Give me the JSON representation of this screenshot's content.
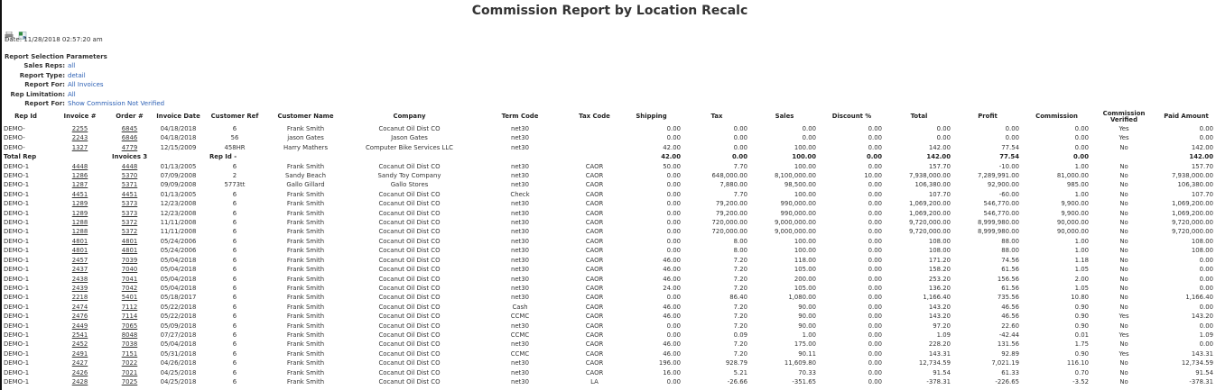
{
  "title": "Commission Report by Location Recalc",
  "toolbar": {
    "icons": [
      "print-icon",
      "excel-export-icon"
    ]
  },
  "date": "Date: 11/28/2018 02:57:20 am",
  "params": {
    "heading": "Report Selection Parameters",
    "items": [
      {
        "label": "Sales Reps:",
        "value": "all"
      },
      {
        "label": "Report Type:",
        "value": "detail"
      },
      {
        "label": "Report For:",
        "value": "All Invoices"
      },
      {
        "label": "Rep Limitation:",
        "value": "All"
      },
      {
        "label": "Report For:",
        "value": "Show Commission Not Verified"
      }
    ]
  },
  "colors": {
    "param_value": "#2b5fb4",
    "total_label": "#1a8a1a"
  },
  "table": {
    "headers": [
      "Rep Id",
      "Invoice #",
      "Order #",
      "Invoice Date",
      "Customer Ref",
      "Customer Name",
      "Company",
      "Term Code",
      "Tax Code",
      "Shipping",
      "Tax",
      "Sales",
      "Discount %",
      "Total",
      "Profit",
      "Commission",
      "Commission Verified",
      "Paid Amount"
    ],
    "rows_before_total": [
      [
        "DEMO-",
        "2255",
        "6845",
        "04/18/2018",
        "6",
        "Frank Smith",
        "Cocanut Oil Dist CO",
        "net30",
        "",
        "0.00",
        "0.00",
        "0.00",
        "0.00",
        "0.00",
        "0.00",
        "0.00",
        "Yes",
        "0.00"
      ],
      [
        "DEMO-",
        "2243",
        "6846",
        "04/18/2018",
        "56",
        "jason Gates",
        "Jason Gates",
        "net30",
        "",
        "0.00",
        "0.00",
        "0.00",
        "0.00",
        "0.00",
        "0.00",
        "0.00",
        "Yes",
        "0.00"
      ],
      [
        "DEMO-",
        "1327",
        "4779",
        "12/15/2009",
        "458HR",
        "Harry Mathers",
        "Computer Bike Services LLC",
        "net30",
        "",
        "42.00",
        "0.00",
        "100.00",
        "0.00",
        "142.00",
        "77.54",
        "0.00",
        "No",
        "142.00"
      ]
    ],
    "total": {
      "label": "Total Rep",
      "invoices": "Invoices 3",
      "rep": "Rep Id -",
      "values": [
        "42.00",
        "0.00",
        "100.00",
        "0.00",
        "142.00",
        "77.54",
        "0.00",
        "",
        "142.00"
      ]
    },
    "rows_after_total": [
      [
        "DEMO-1",
        "4448",
        "4448",
        "01/13/2005",
        "6",
        "Frank Smith",
        "Cocanut Oil Dist CO",
        "net30",
        "CAOR",
        "50.00",
        "7.70",
        "100.00",
        "0.00",
        "157.70",
        "-10.00",
        "1.00",
        "No",
        "157.70"
      ],
      [
        "DEMO-1",
        "1286",
        "5370",
        "07/09/2008",
        "2",
        "Sandy Beach",
        "Sandy Toy Company",
        "net30",
        "CAOR",
        "0.00",
        "648,000.00",
        "8,100,000.00",
        "10.00",
        "7,938,000.00",
        "7,289,991.00",
        "81,000.00",
        "No",
        "7,938,000.00"
      ],
      [
        "DEMO-1",
        "1287",
        "5371",
        "09/09/2008",
        "5773tt",
        "Gallo Gillard",
        "Gallo Stores",
        "net30",
        "CAOR",
        "0.00",
        "7,880.00",
        "98,500.00",
        "0.00",
        "106,380.00",
        "92,900.00",
        "985.00",
        "No",
        "106,380.00"
      ],
      [
        "DEMO-1",
        "4451",
        "4451",
        "01/13/2005",
        "6",
        "Frank Smith",
        "Cocanut Oil Dist CO",
        "Check",
        "CAOR",
        "0.00",
        "7.70",
        "100.00",
        "0.00",
        "107.70",
        "-60.00",
        "1.00",
        "No",
        "107.70"
      ],
      [
        "DEMO-1",
        "1289",
        "5373",
        "12/23/2008",
        "6",
        "Frank Smith",
        "Cocanut Oil Dist CO",
        "net30",
        "CAOR",
        "0.00",
        "79,200.00",
        "990,000.00",
        "0.00",
        "1,069,200.00",
        "546,770.00",
        "9,900.00",
        "No",
        "1,069,200.00"
      ],
      [
        "DEMO-1",
        "1289",
        "5373",
        "12/23/2008",
        "6",
        "Frank Smith",
        "Cocanut Oil Dist CO",
        "net30",
        "CAOR",
        "0.00",
        "79,200.00",
        "990,000.00",
        "0.00",
        "1,069,200.00",
        "546,770.00",
        "9,900.00",
        "No",
        "1,069,200.00"
      ],
      [
        "DEMO-1",
        "1288",
        "5372",
        "11/11/2008",
        "6",
        "Frank Smith",
        "Cocanut Oil Dist CO",
        "net30",
        "CAOR",
        "0.00",
        "720,000.00",
        "9,000,000.00",
        "0.00",
        "9,720,000.00",
        "8,999,980.00",
        "90,000.00",
        "No",
        "9,720,000.00"
      ],
      [
        "DEMO-1",
        "1288",
        "5372",
        "11/11/2008",
        "6",
        "Frank Smith",
        "Cocanut Oil Dist CO",
        "net30",
        "CAOR",
        "0.00",
        "720,000.00",
        "9,000,000.00",
        "0.00",
        "9,720,000.00",
        "8,999,980.00",
        "90,000.00",
        "No",
        "9,720,000.00"
      ],
      [
        "DEMO-1",
        "4801",
        "4801",
        "05/24/2006",
        "6",
        "Frank Smith",
        "Cocanut Oil Dist CO",
        "net30",
        "CAOR",
        "0.00",
        "8.00",
        "100.00",
        "0.00",
        "108.00",
        "88.00",
        "1.00",
        "No",
        "108.00"
      ],
      [
        "DEMO-1",
        "4801",
        "4801",
        "05/24/2006",
        "6",
        "Frank Smith",
        "Cocanut Oil Dist CO",
        "net30",
        "CAOR",
        "0.00",
        "8.00",
        "100.00",
        "0.00",
        "108.00",
        "88.00",
        "1.00",
        "No",
        "108.00"
      ],
      [
        "DEMO-1",
        "2457",
        "7039",
        "05/04/2018",
        "6",
        "Frank Smith",
        "Cocanut Oil Dist CO",
        "net30",
        "CAOR",
        "46.00",
        "7.20",
        "118.00",
        "0.00",
        "171.20",
        "74.56",
        "1.18",
        "No",
        "0.00"
      ],
      [
        "DEMO-1",
        "2437",
        "7040",
        "05/04/2018",
        "6",
        "Frank Smith",
        "Cocanut Oil Dist CO",
        "net30",
        "CAOR",
        "46.00",
        "7.20",
        "105.00",
        "0.00",
        "158.20",
        "61.56",
        "1.05",
        "No",
        "0.00"
      ],
      [
        "DEMO-1",
        "2438",
        "7041",
        "05/04/2018",
        "6",
        "Frank Smith",
        "Cocanut Oil Dist CO",
        "net30",
        "CAOR",
        "46.00",
        "7.20",
        "200.00",
        "0.00",
        "253.20",
        "156.56",
        "2.00",
        "No",
        "0.00"
      ],
      [
        "DEMO-1",
        "2439",
        "7042",
        "05/04/2018",
        "6",
        "Frank Smith",
        "Cocanut Oil Dist CO",
        "net30",
        "CAOR",
        "24.00",
        "7.20",
        "105.00",
        "0.00",
        "136.20",
        "61.56",
        "1.05",
        "No",
        "0.00"
      ],
      [
        "DEMO-1",
        "2218",
        "5401",
        "05/18/2017",
        "6",
        "Frank Smith",
        "Cocanut Oil Dist CO",
        "net30",
        "CAOR",
        "0.00",
        "86.40",
        "1,080.00",
        "0.00",
        "1,166.40",
        "735.56",
        "10.80",
        "No",
        "1,166.40"
      ],
      [
        "DEMO-1",
        "2474",
        "7112",
        "05/22/2018",
        "6",
        "Frank Smith",
        "Cocanut Oil Dist CO",
        "Cash",
        "CAOR",
        "46.00",
        "7.20",
        "90.00",
        "0.00",
        "143.20",
        "46.56",
        "0.90",
        "No",
        "0.00"
      ],
      [
        "DEMO-1",
        "2476",
        "7114",
        "05/22/2018",
        "6",
        "Frank Smith",
        "Cocanut Oil Dist CO",
        "CCMC",
        "CAOR",
        "46.00",
        "7.20",
        "90.00",
        "0.00",
        "143.20",
        "46.56",
        "0.90",
        "Yes",
        "143.20"
      ],
      [
        "DEMO-1",
        "2449",
        "7065",
        "05/09/2018",
        "6",
        "Frank Smith",
        "Cocanut Oil Dist CO",
        "net30",
        "CAOR",
        "0.00",
        "7.20",
        "90.00",
        "0.00",
        "97.20",
        "22.60",
        "0.90",
        "No",
        "0.00"
      ],
      [
        "DEMO-1",
        "2541",
        "8048",
        "07/27/2018",
        "6",
        "Frank Smith",
        "Cocanut Oil Dist CO",
        "CCMC",
        "CAOR",
        "0.00",
        "0.09",
        "1.00",
        "0.00",
        "1.09",
        "-42.44",
        "0.01",
        "Yes",
        "1.09"
      ],
      [
        "DEMO-1",
        "2452",
        "7038",
        "05/04/2018",
        "6",
        "Frank Smith",
        "Cocanut Oil Dist CO",
        "net30",
        "CAOR",
        "46.00",
        "7.20",
        "175.00",
        "0.00",
        "228.20",
        "131.56",
        "1.75",
        "No",
        "0.00"
      ],
      [
        "DEMO-1",
        "2491",
        "7151",
        "05/31/2018",
        "6",
        "Frank Smith",
        "Cocanut Oil Dist CO",
        "CCMC",
        "CAOR",
        "46.00",
        "7.20",
        "90.11",
        "0.00",
        "143.31",
        "92.89",
        "0.90",
        "Yes",
        "143.31"
      ],
      [
        "DEMO-1",
        "2427",
        "7022",
        "04/26/2018",
        "6",
        "Frank Smith",
        "Cocanut Oil Dist CO",
        "net30",
        "CAOR",
        "196.00",
        "928.79",
        "11,609.80",
        "0.00",
        "12,734.59",
        "7,021.19",
        "116.10",
        "No",
        "12,734.59"
      ],
      [
        "DEMO-1",
        "2426",
        "7021",
        "04/25/2018",
        "6",
        "Frank Smith",
        "Cocanut Oil Dist CO",
        "net30",
        "CAOR",
        "16.00",
        "5.21",
        "70.33",
        "0.00",
        "91.54",
        "61.33",
        "0.70",
        "No",
        "91.54"
      ],
      [
        "DEMO-1",
        "2428",
        "7025",
        "04/25/2018",
        "6",
        "Frank Smith",
        "Cocanut Oil Dist CO",
        "net30",
        "LA",
        "0.00",
        "-26.66",
        "-351.65",
        "0.00",
        "-378.31",
        "-226.65",
        "-3.52",
        "No",
        "-378.31"
      ]
    ]
  }
}
